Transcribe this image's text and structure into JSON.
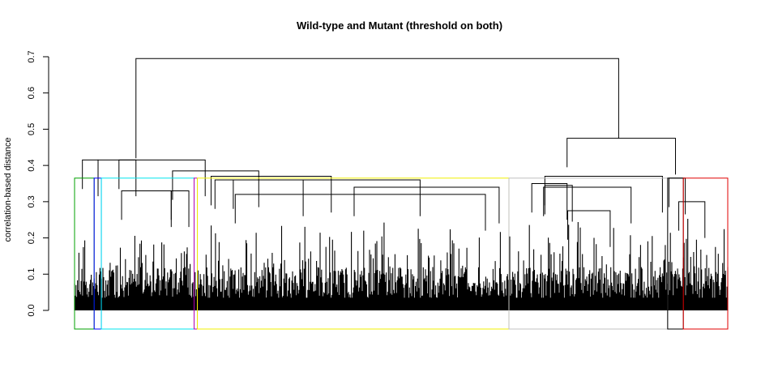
{
  "chart_data": {
    "type": "dendrogram",
    "title": "Wild-type and Mutant (threshold on both)",
    "xlabel": "",
    "ylabel": "correlation-based distance",
    "ylim": [
      0,
      0.7
    ],
    "y_ticks": [
      0.0,
      0.1,
      0.2,
      0.3,
      0.4,
      0.5,
      0.6,
      0.7
    ],
    "y_tick_labels": [
      "0.0",
      "0.1",
      "0.2",
      "0.3",
      "0.4",
      "0.5",
      "0.6",
      "0.7"
    ],
    "x_range": [
      0,
      1
    ],
    "cut_height": 0.365,
    "root_merge": {
      "height": 0.695,
      "left_x": 0.094,
      "right_x": 0.833
    },
    "main_merges": [
      {
        "left_x": 0.036,
        "right_x": 0.094,
        "height": 0.415
      },
      {
        "left_x": 0.012,
        "right_x": 0.036,
        "height": 0.415
      },
      {
        "left_x": 0.068,
        "right_x": 0.2,
        "height": 0.415
      },
      {
        "left_x": 0.15,
        "right_x": 0.282,
        "height": 0.385
      },
      {
        "left_x": 0.209,
        "right_x": 0.393,
        "height": 0.37
      },
      {
        "left_x": 0.215,
        "right_x": 0.35,
        "height": 0.36
      },
      {
        "left_x": 0.243,
        "right_x": 0.529,
        "height": 0.36
      },
      {
        "left_x": 0.428,
        "right_x": 0.65,
        "height": 0.34
      },
      {
        "left_x": 0.246,
        "right_x": 0.629,
        "height": 0.32
      },
      {
        "left_x": 0.148,
        "right_x": 0.175,
        "height": 0.33
      },
      {
        "left_x": 0.072,
        "right_x": 0.148,
        "height": 0.33
      },
      {
        "left_x": 0.754,
        "right_x": 0.92,
        "height": 0.475
      },
      {
        "left_x": 0.7,
        "right_x": 0.754,
        "height": 0.35
      },
      {
        "left_x": 0.72,
        "right_x": 0.762,
        "height": 0.345
      },
      {
        "left_x": 0.718,
        "right_x": 0.852,
        "height": 0.34
      },
      {
        "left_x": 0.72,
        "right_x": 0.9,
        "height": 0.37
      },
      {
        "left_x": 0.755,
        "right_x": 0.82,
        "height": 0.275
      },
      {
        "left_x": 0.91,
        "right_x": 0.935,
        "height": 0.365
      },
      {
        "left_x": 0.925,
        "right_x": 0.965,
        "height": 0.3
      }
    ],
    "clusters": [
      {
        "color": "#00a000",
        "x_start": 0.0,
        "x_end": 0.03
      },
      {
        "color": "#0000ff",
        "x_start": 0.03,
        "x_end": 0.041
      },
      {
        "color": "#00e5ee",
        "x_start": 0.041,
        "x_end": 0.183
      },
      {
        "color": "#b000b0",
        "x_start": 0.183,
        "x_end": 0.188
      },
      {
        "color": "#f0f000",
        "x_start": 0.188,
        "x_end": 0.665
      },
      {
        "color": "#c0c0c0",
        "x_start": 0.665,
        "x_end": 0.908
      },
      {
        "color": "#000000",
        "x_start": 0.908,
        "x_end": 0.932
      },
      {
        "color": "#e00000",
        "x_start": 0.932,
        "x_end": 1.0
      }
    ]
  }
}
